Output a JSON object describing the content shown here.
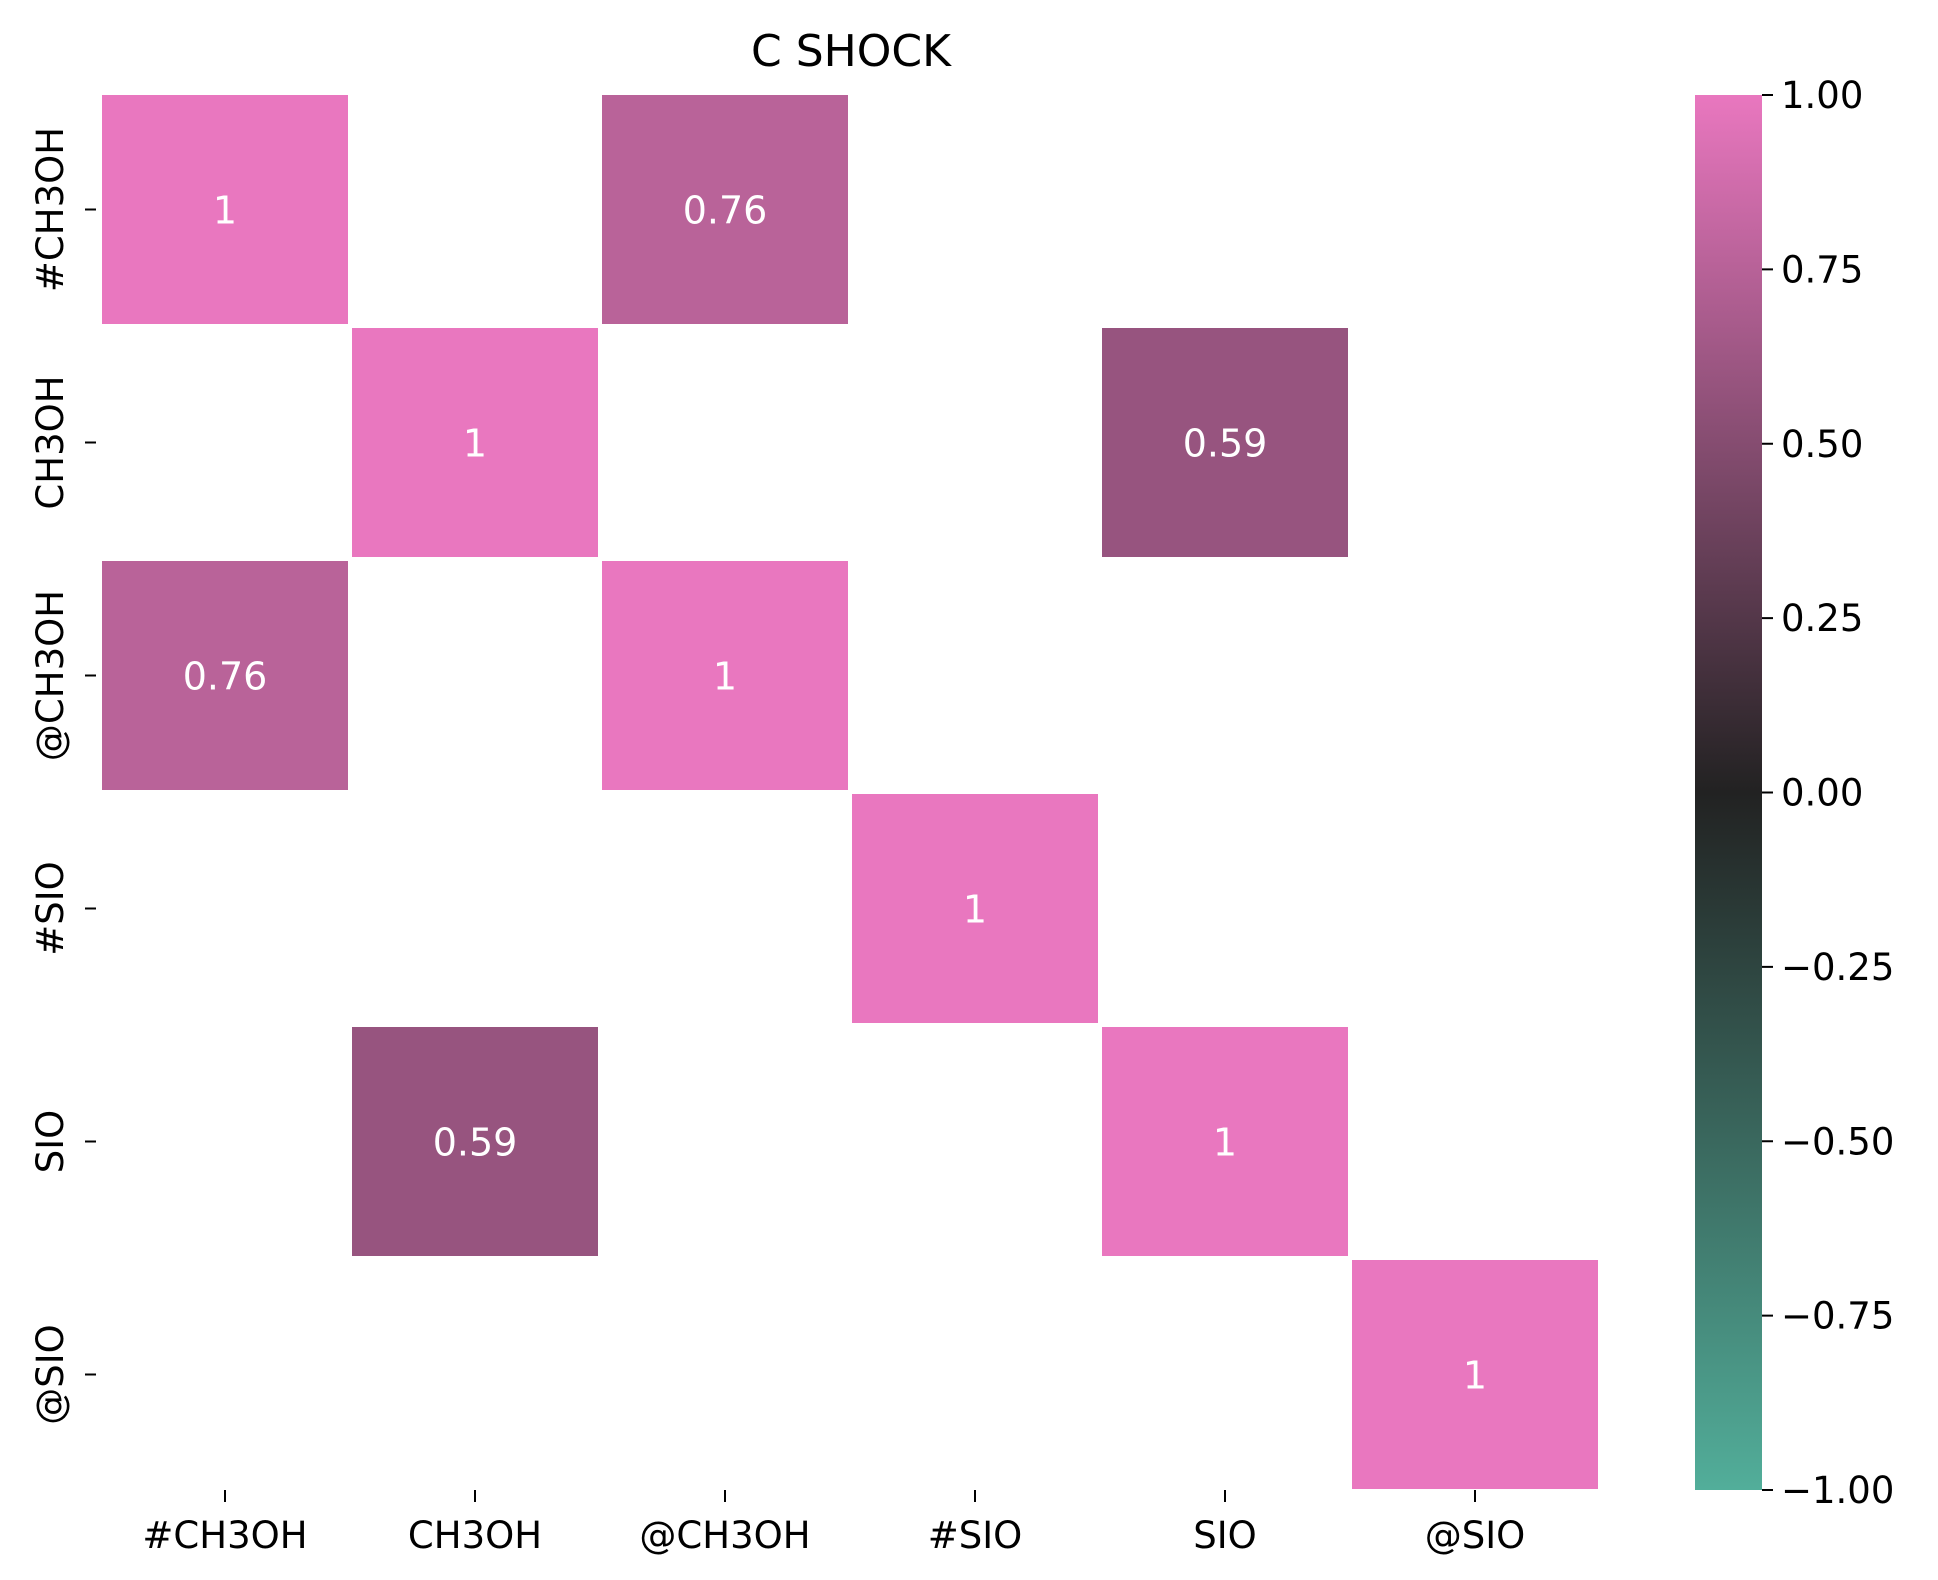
{
  "chart_data": {
    "type": "heatmap",
    "title": "C SHOCK",
    "xlabel": "",
    "ylabel": "",
    "x_categories": [
      "#CH3OH",
      "CH3OH",
      "@CH3OH",
      "#SIO",
      "SIO",
      "@SIO"
    ],
    "y_categories": [
      "#CH3OH",
      "CH3OH",
      "@CH3OH",
      "#SIO",
      "SIO",
      "@SIO"
    ],
    "matrix": [
      [
        1,
        null,
        0.76,
        null,
        null,
        null
      ],
      [
        null,
        1,
        null,
        null,
        0.59,
        null
      ],
      [
        0.76,
        null,
        1,
        null,
        null,
        null
      ],
      [
        null,
        null,
        null,
        1,
        null,
        null
      ],
      [
        null,
        0.59,
        null,
        null,
        1,
        null
      ],
      [
        null,
        null,
        null,
        null,
        null,
        1
      ]
    ],
    "annotations": [
      [
        "1",
        "",
        "0.76",
        "",
        "",
        ""
      ],
      [
        "",
        "1",
        "",
        "",
        "0.59",
        ""
      ],
      [
        "0.76",
        "",
        "1",
        "",
        "",
        ""
      ],
      [
        "",
        "",
        "",
        "1",
        "",
        ""
      ],
      [
        "",
        "0.59",
        "",
        "",
        "1",
        ""
      ],
      [
        "",
        "",
        "",
        "",
        "",
        "1"
      ]
    ],
    "colorbar": {
      "range": [
        -1,
        1
      ],
      "ticks": [
        1.0,
        0.75,
        0.5,
        0.25,
        0.0,
        -0.25,
        -0.5,
        -0.75,
        -1.0
      ],
      "tick_labels": [
        "1.00",
        "0.75",
        "0.50",
        "0.25",
        "0.00",
        "−0.25",
        "−0.50",
        "−0.75",
        "−1.00"
      ],
      "colors": {
        "negative_end": "#52ae9a",
        "center": "#222222",
        "positive_end": "#e977bf"
      }
    },
    "grid": false,
    "legend": "colorbar-right"
  }
}
